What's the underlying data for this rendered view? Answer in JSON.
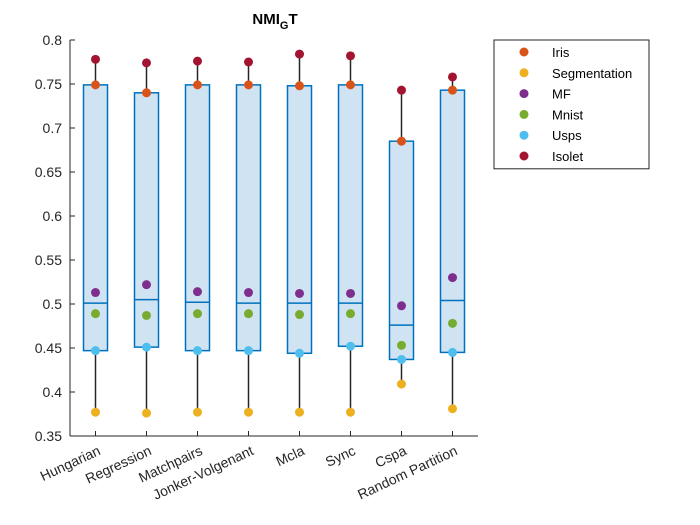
{
  "chart_data": {
    "type": "box",
    "title": "NMI",
    "title_subscript": "G",
    "title_suffix": "T",
    "xlabel": "",
    "ylabel": "",
    "ylim": [
      0.35,
      0.8
    ],
    "yticks": [
      "0.35",
      "0.4",
      "0.45",
      "0.5",
      "0.55",
      "0.6",
      "0.65",
      "0.7",
      "0.75",
      "0.8"
    ],
    "categories": [
      "Hungarian",
      "Regression",
      "Matchpairs",
      "Jonker-Volgenant",
      "Mcla",
      "Sync",
      "Cspa",
      "Random Partition"
    ],
    "boxes": [
      {
        "min": 0.377,
        "q1": 0.447,
        "median": 0.501,
        "q3": 0.749,
        "max": 0.778
      },
      {
        "min": 0.376,
        "q1": 0.451,
        "median": 0.505,
        "q3": 0.74,
        "max": 0.774
      },
      {
        "min": 0.377,
        "q1": 0.447,
        "median": 0.502,
        "q3": 0.749,
        "max": 0.776
      },
      {
        "min": 0.377,
        "q1": 0.447,
        "median": 0.501,
        "q3": 0.749,
        "max": 0.775
      },
      {
        "min": 0.377,
        "q1": 0.444,
        "median": 0.501,
        "q3": 0.748,
        "max": 0.784
      },
      {
        "min": 0.377,
        "q1": 0.452,
        "median": 0.501,
        "q3": 0.749,
        "max": 0.782
      },
      {
        "min": 0.409,
        "q1": 0.437,
        "median": 0.476,
        "q3": 0.685,
        "max": 0.743
      },
      {
        "min": 0.381,
        "q1": 0.445,
        "median": 0.504,
        "q3": 0.743,
        "max": 0.758
      }
    ],
    "series": [
      {
        "name": "Iris",
        "color": "#d95319",
        "values": [
          0.749,
          0.74,
          0.749,
          0.749,
          0.748,
          0.749,
          0.685,
          0.743
        ]
      },
      {
        "name": "Segmentation",
        "color": "#edb120",
        "values": [
          0.377,
          0.376,
          0.377,
          0.377,
          0.377,
          0.377,
          0.409,
          0.381
        ]
      },
      {
        "name": "MF",
        "color": "#7e2f8e",
        "values": [
          0.513,
          0.522,
          0.514,
          0.513,
          0.512,
          0.512,
          0.498,
          0.53
        ]
      },
      {
        "name": "Mnist",
        "color": "#77ac30",
        "values": [
          0.489,
          0.487,
          0.489,
          0.489,
          0.488,
          0.489,
          0.453,
          0.478
        ]
      },
      {
        "name": "Usps",
        "color": "#4dbeee",
        "values": [
          0.447,
          0.451,
          0.447,
          0.447,
          0.444,
          0.452,
          0.437,
          0.445
        ]
      },
      {
        "name": "Isolet",
        "color": "#a2142f",
        "values": [
          0.778,
          0.774,
          0.776,
          0.775,
          0.784,
          0.782,
          0.743,
          0.758
        ]
      }
    ],
    "box_fill": "#cfe3f3",
    "box_edge": "#0072bd",
    "whisker_color": "#262626",
    "grid": false,
    "legend_position": "outside-right"
  }
}
